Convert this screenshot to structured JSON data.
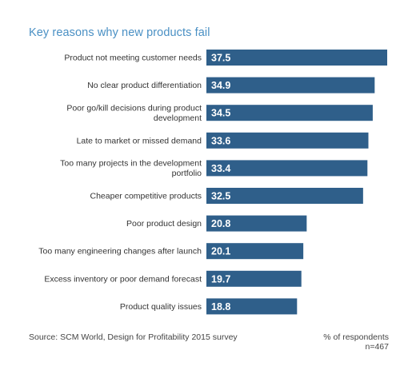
{
  "chart_data": {
    "type": "bar",
    "orientation": "horizontal",
    "title": "Key reasons why new products fail",
    "categories": [
      "Product not meeting customer needs",
      "No clear product differentiation",
      "Poor go/kill decisions during product development",
      "Late to market or missed demand",
      "Too many projects in the development portfolio",
      "Cheaper competitive products",
      "Poor product design",
      "Too many engineering changes after launch",
      "Excess inventory or poor demand forecast",
      "Product quality issues"
    ],
    "category_lines": [
      [
        "Product not meeting customer needs"
      ],
      [
        "No clear product differentiation"
      ],
      [
        "Poor go/kill decisions during product",
        "development"
      ],
      [
        "Late to market or missed demand"
      ],
      [
        "Too many projects in the development",
        "portfolio"
      ],
      [
        "Cheaper competitive products"
      ],
      [
        "Poor product design"
      ],
      [
        "Too many engineering changes after launch"
      ],
      [
        "Excess inventory or poor demand forecast"
      ],
      [
        "Product quality issues"
      ]
    ],
    "values": [
      37.5,
      34.9,
      34.5,
      33.6,
      33.4,
      32.5,
      20.8,
      20.1,
      19.7,
      18.8
    ],
    "value_labels": [
      "37.5",
      "34.9",
      "34.5",
      "33.6",
      "33.4",
      "32.5",
      "20.8",
      "20.1",
      "19.7",
      "18.8"
    ],
    "xlim": [
      0,
      37.5
    ],
    "grid": false,
    "legend": "none",
    "bar_color": "#2f5f8a",
    "label_color": "#ffffff",
    "category_text_color": "#333333"
  },
  "source_text": "Source: SCM World, Design for Profitability 2015 survey",
  "unit_note": "% of respondents",
  "sample_note": "n=467",
  "colors": {
    "title": "#4a90c4",
    "text": "#444444"
  }
}
